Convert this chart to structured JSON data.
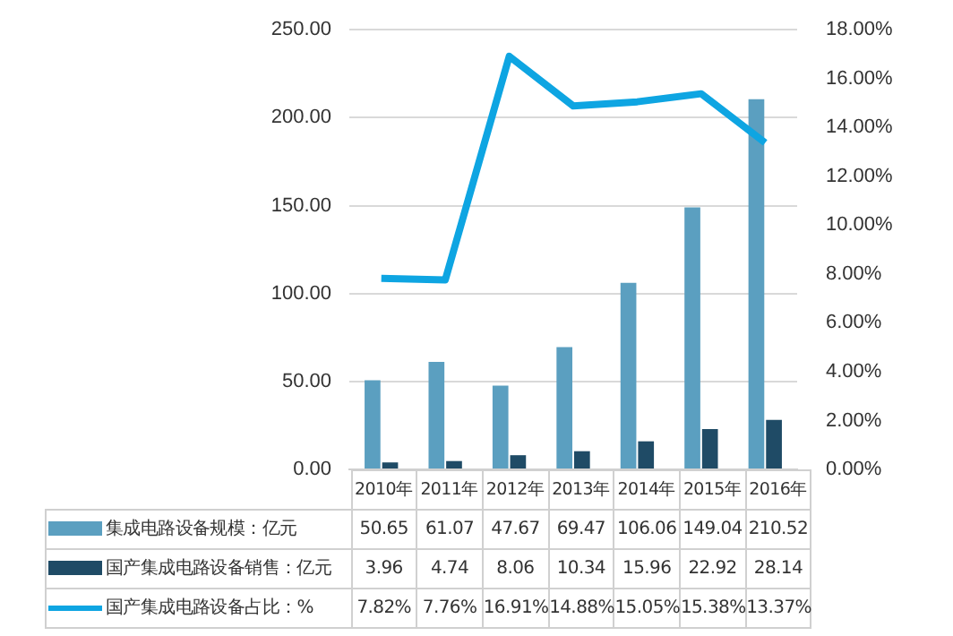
{
  "chart_data": {
    "type": "bar",
    "categories": [
      "2010年",
      "2011年",
      "2012年",
      "2013年",
      "2014年",
      "2015年",
      "2016年"
    ],
    "series": [
      {
        "name": "集成电路设备规模：亿元",
        "color": "#5b9fc0",
        "values": [
          50.65,
          61.07,
          47.67,
          69.47,
          106.06,
          149.04,
          210.52
        ],
        "value_labels": [
          "50.65",
          "61.07",
          "47.67",
          "69.47",
          "106.06",
          "149.04",
          "210.52"
        ]
      },
      {
        "name": "国产集成电路设备销售：亿元",
        "color": "#1f4b66",
        "values": [
          3.96,
          4.74,
          8.06,
          10.34,
          15.96,
          22.92,
          28.14
        ],
        "value_labels": [
          "3.96",
          "4.74",
          "8.06",
          "10.34",
          "15.96",
          "22.92",
          "28.14"
        ]
      },
      {
        "name": "国产集成电路设备占比：%",
        "type": "line",
        "axis": "y2",
        "color": "#0ea5e2",
        "marker": "none",
        "values": [
          7.82,
          7.76,
          16.91,
          14.88,
          15.05,
          15.38,
          13.37
        ],
        "value_labels": [
          "7.82%",
          "7.76%",
          "16.91%",
          "14.88%",
          "15.05%",
          "15.38%",
          "13.37%"
        ]
      }
    ],
    "ylim": [
      0,
      250
    ],
    "yticks": [
      {
        "value": 0,
        "label": "0.00"
      },
      {
        "value": 50,
        "label": "50.00"
      },
      {
        "value": 100,
        "label": "100.00"
      },
      {
        "value": 150,
        "label": "150.00"
      },
      {
        "value": 200,
        "label": "200.00"
      },
      {
        "value": 250,
        "label": "250.00"
      }
    ],
    "y2lim": [
      0,
      18
    ],
    "y2ticks": [
      {
        "value": 0,
        "label": "0.00%"
      },
      {
        "value": 2,
        "label": "2.00%"
      },
      {
        "value": 4,
        "label": "4.00%"
      },
      {
        "value": 6,
        "label": "6.00%"
      },
      {
        "value": 8,
        "label": "8.00%"
      },
      {
        "value": 10,
        "label": "10.00%"
      },
      {
        "value": 12,
        "label": "12.00%"
      },
      {
        "value": 14,
        "label": "14.00%"
      },
      {
        "value": 16,
        "label": "16.00%"
      },
      {
        "value": 18,
        "label": "18.00%"
      }
    ],
    "grid": "y",
    "legend": "bottom"
  }
}
